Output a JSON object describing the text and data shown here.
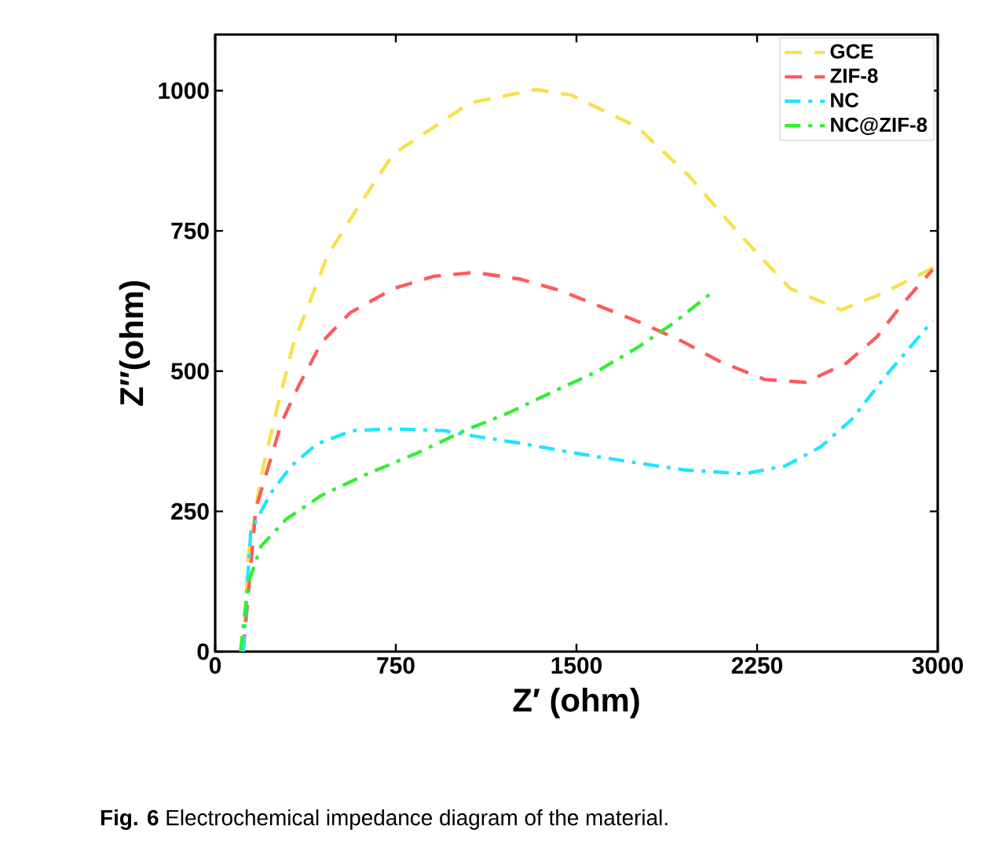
{
  "chart_data": {
    "type": "line",
    "xlabel": "Z′ (ohm)",
    "ylabel": "Z″(ohm)",
    "xlim": [
      0,
      3000
    ],
    "xticks": [
      0,
      750,
      1500,
      2250,
      3000
    ],
    "ylim": [
      0,
      1100
    ],
    "yticks": [
      0,
      250,
      500,
      750,
      1000
    ],
    "legend": "top right",
    "marker": "none",
    "grid": false,
    "annotations": [
      "**Fig. 6** Electrochemical impedance diagram of the material."
    ],
    "series": [
      {
        "name": "GCE",
        "color": "#f7e04a",
        "line_style": "dashed",
        "x": [
          116,
          137,
          190,
          253,
          327,
          380,
          465,
          591,
          739,
          908,
          1056,
          1331,
          1479,
          1753,
          1965,
          2177,
          2388,
          2599,
          2768,
          2990
        ],
        "values": [
          0,
          169,
          312,
          427,
          552,
          609,
          705,
          791,
          887,
          935,
          978,
          1002,
          992,
          935,
          849,
          744,
          647,
          609,
          638,
          686
        ]
      },
      {
        "name": "ZIF-8",
        "color": "#ff5a5a",
        "line_style": "dashed",
        "x": [
          116,
          169,
          275,
          348,
          443,
          560,
          739,
          908,
          1077,
          1267,
          1437,
          1606,
          1775,
          1944,
          2092,
          2282,
          2451,
          2620,
          2747,
          2852,
          2979
        ],
        "values": [
          0,
          255,
          408,
          475,
          552,
          604,
          647,
          669,
          676,
          664,
          643,
          614,
          585,
          552,
          518,
          485,
          480,
          514,
          561,
          619,
          681
        ]
      },
      {
        "name": "NC",
        "color": "#22e4ff",
        "line_style": "dashdot",
        "x": [
          116,
          148,
          232,
          316,
          422,
          570,
          739,
          950,
          1077,
          1289,
          1479,
          1711,
          1944,
          2197,
          2367,
          2514,
          2641,
          2789,
          2979
        ],
        "values": [
          0,
          216,
          283,
          331,
          370,
          394,
          397,
          394,
          384,
          370,
          355,
          339,
          324,
          317,
          331,
          365,
          413,
          494,
          590
        ]
      },
      {
        "name": "NC@ZIF-8",
        "color": "#33ee33",
        "line_style": "dashdot",
        "x": [
          105,
          137,
          190,
          295,
          443,
          633,
          845,
          1035,
          1226,
          1416,
          1584,
          1753,
          1901,
          2071
        ],
        "values": [
          0,
          121,
          188,
          236,
          279,
          317,
          355,
          394,
          427,
          466,
          499,
          542,
          585,
          643
        ]
      }
    ]
  }
}
